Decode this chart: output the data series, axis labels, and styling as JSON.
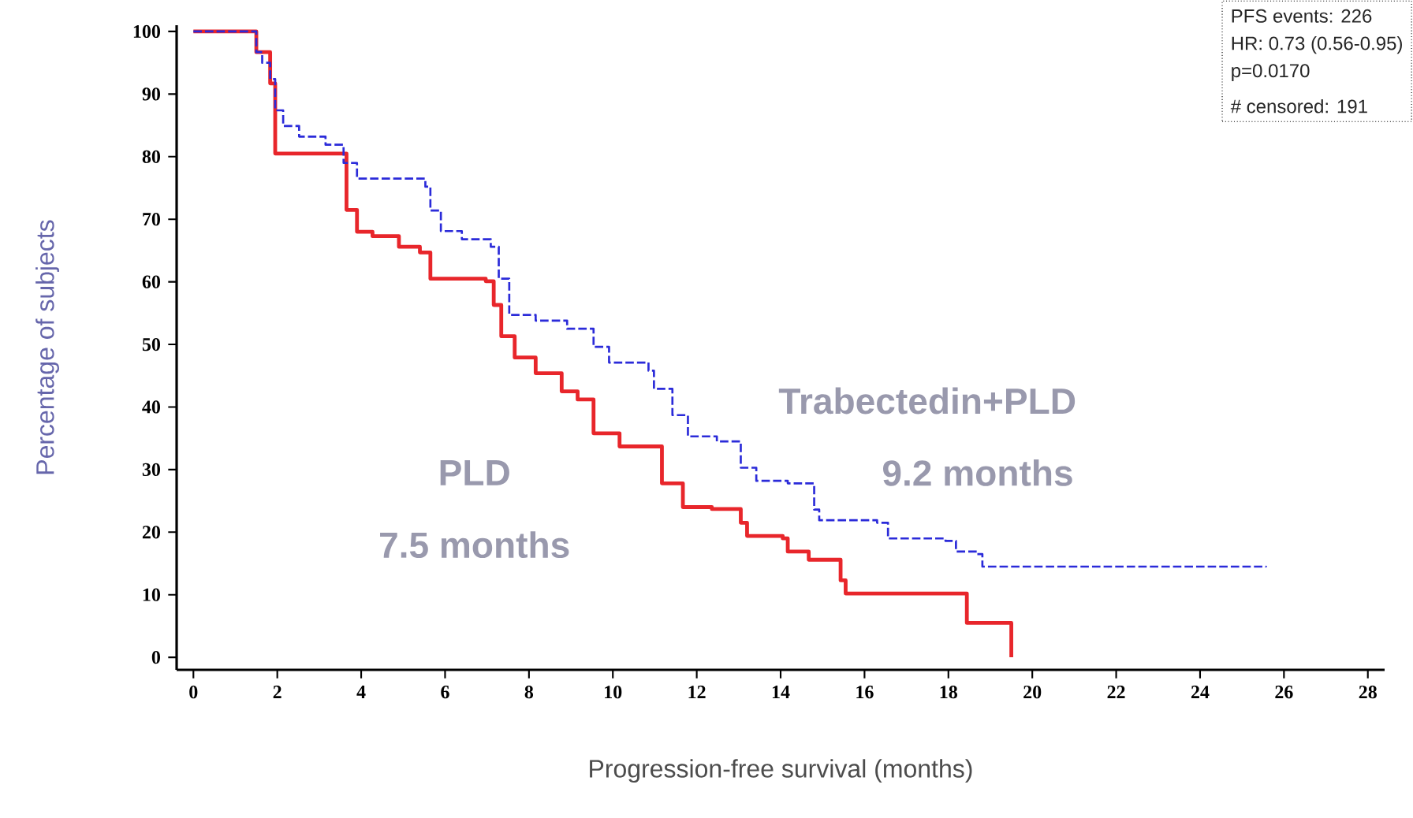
{
  "chart_data": {
    "type": "step",
    "xlabel": "Progression-free survival (months)",
    "ylabel": "Percentage of subjects",
    "xlim": [
      -0.4,
      28.4
    ],
    "ylim": [
      -2,
      101
    ],
    "xticks": [
      0,
      2,
      4,
      6,
      8,
      10,
      12,
      14,
      16,
      18,
      20,
      22,
      24,
      26,
      28
    ],
    "yticks": [
      0,
      10,
      20,
      30,
      40,
      50,
      60,
      70,
      80,
      90,
      100
    ],
    "grid": false,
    "marker": "none",
    "series": [
      {
        "name": "PLD",
        "color": "#e8262b",
        "line_style": "solid",
        "x": [
          0,
          1.5,
          1.83,
          1.95,
          3.52,
          3.65,
          3.9,
          4.27,
          4.9,
          5.4,
          5.65,
          6.97,
          7.16,
          7.34,
          7.66,
          8.16,
          8.78,
          9.16,
          9.54,
          10.16,
          11.04,
          11.17,
          11.67,
          12.36,
          13.05,
          13.2,
          14.05,
          14.17,
          14.67,
          15.43,
          15.55,
          18.37,
          18.44,
          19.44,
          19.5
        ],
        "values": [
          100,
          96.7,
          91.7,
          80.5,
          80.5,
          71.5,
          68,
          67.3,
          65.6,
          64.7,
          60.5,
          60.1,
          56.3,
          51.3,
          47.9,
          45.4,
          42.5,
          41.2,
          35.8,
          33.7,
          33.7,
          27.8,
          24,
          23.7,
          21.5,
          19.4,
          19,
          16.9,
          15.6,
          12.3,
          10.2,
          10.2,
          5.5,
          5.5,
          0
        ]
      },
      {
        "name": "Trabectedin+PLD",
        "color": "#2b2bd9",
        "line_style": "dashed",
        "x": [
          0,
          1.5,
          1.64,
          1.83,
          1.95,
          2.14,
          2.52,
          3.15,
          3.58,
          3.9,
          4.9,
          5.53,
          5.65,
          5.9,
          6.4,
          7.09,
          7.28,
          7.53,
          8.16,
          8.91,
          9.54,
          9.91,
          10.85,
          10.98,
          11.42,
          11.79,
          12.48,
          13.05,
          13.42,
          14.17,
          14.8,
          14.92,
          16.3,
          16.56,
          17.93,
          18.18,
          18.68,
          18.81,
          25.57
        ],
        "values": [
          100,
          96.7,
          95,
          92.4,
          87.4,
          84.9,
          83.2,
          81.9,
          79,
          76.5,
          76.5,
          75.2,
          71.4,
          68.1,
          66.8,
          65.6,
          60.5,
          54.7,
          53.8,
          52.5,
          49.6,
          47.1,
          45.8,
          42.9,
          38.7,
          35.3,
          34.5,
          30.3,
          28.2,
          27.8,
          23.6,
          21.9,
          21.5,
          19,
          18.6,
          16.9,
          16.5,
          14.5,
          14.4
        ]
      }
    ],
    "annotations": [
      "PFS events: 226",
      "HR: 0.73 (0.56-0.95)",
      "p=0.0170",
      "# censored: 191",
      "7.5 months",
      "9.2 months"
    ]
  }
}
